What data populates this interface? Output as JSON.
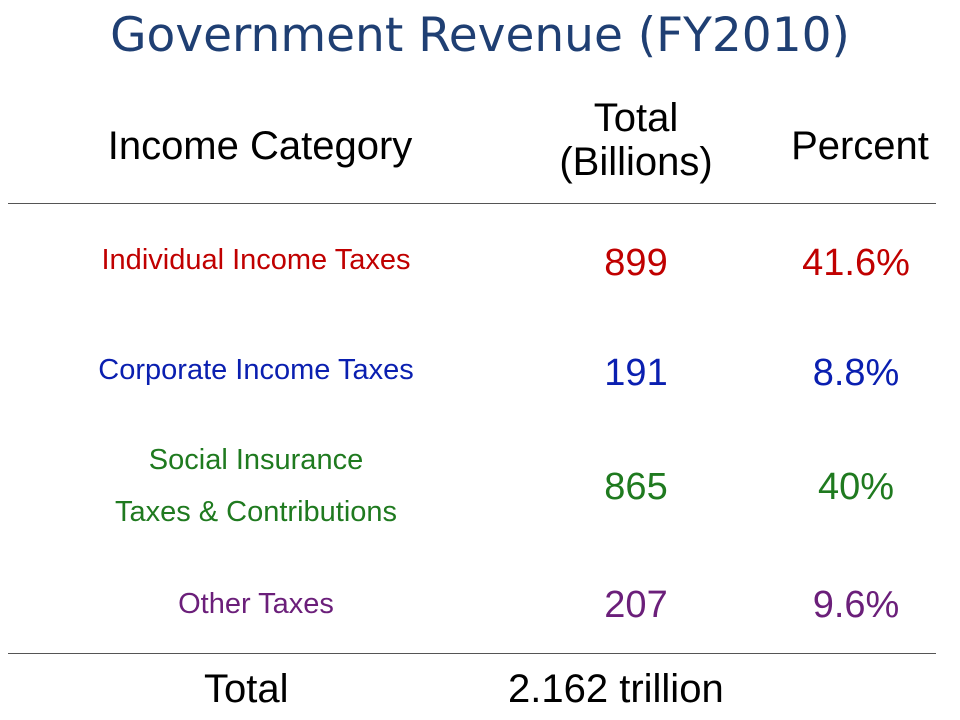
{
  "title": "Government Revenue (FY2010)",
  "headers": {
    "category": "Income Category",
    "total_line1": "Total",
    "total_line2": "(Billions)",
    "percent": "Percent"
  },
  "rows": [
    {
      "category": "Individual Income Taxes",
      "total": "899",
      "percent": "41.6%",
      "color": "#c00000"
    },
    {
      "category": "Corporate Income Taxes",
      "total": "191",
      "percent": "8.8%",
      "color": "#0a1fb0"
    },
    {
      "category_line1": "Social Insurance",
      "category_line2": "Taxes & Contributions",
      "total": "865",
      "percent": "40%",
      "color": "#1f7a1f"
    },
    {
      "category": "Other Taxes",
      "total": "207",
      "percent": "9.6%",
      "color": "#6b1f7a"
    }
  ],
  "footer": {
    "label": "Total",
    "value": "2.162 trillion"
  }
}
